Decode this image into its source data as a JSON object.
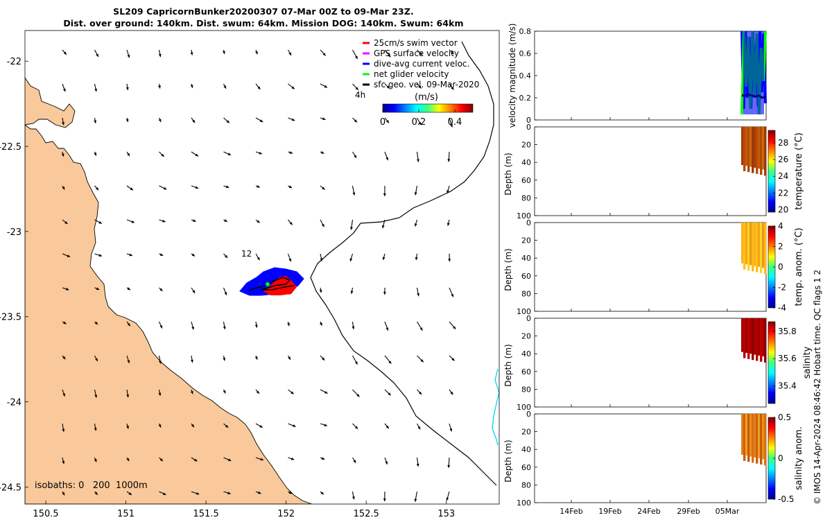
{
  "chart_data": [
    {
      "type": "map",
      "title_line1": "SL209 CapricornBunker20200307 07-Mar 00Z to 09-Mar 23Z.",
      "title_line2": "Dist. over ground: 140km. Dist. swum: 64km. Mission DOG: 140km. Swum: 64km",
      "xlim": [
        150.37,
        153.33
      ],
      "ylim": [
        -24.6,
        -21.82
      ],
      "x_ticks": [
        150.5,
        151,
        151.5,
        152,
        152.5,
        153
      ],
      "x_tick_labels": [
        "150.5",
        "151",
        "151.5",
        "152",
        "152.5",
        "153"
      ],
      "y_ticks": [
        -22,
        -22.5,
        -23,
        -23.5,
        -24,
        -24.5
      ],
      "y_tick_labels": [
        "-22",
        "-22.5",
        "-23",
        "-23.5",
        "-24",
        "-24.5"
      ],
      "legend": [
        {
          "label": "25cm/s swim vector",
          "color": "#ff0000"
        },
        {
          "label": "GPS surface velocity",
          "color": "#ff00ff"
        },
        {
          "label": "dive-avg current veloc.",
          "color": "#0000ff"
        },
        {
          "label": "net glider velocity",
          "color": "#00ff00"
        },
        {
          "label": "sfc geo. vel. 09-Mar-2020",
          "color": "#000000"
        }
      ],
      "colorbar": {
        "label": "(m/s)",
        "ticks": [
          0,
          0.2,
          0.4
        ],
        "tick_labels": [
          "0",
          "0.2",
          "0.4"
        ],
        "range": [
          0,
          0.5
        ]
      },
      "annotations": {
        "time_step": "4h",
        "marker_12": "12",
        "isobaths": "isobaths: 0   200  1000m"
      },
      "colors": {
        "land": "#f9c99b",
        "track": "#0000ff",
        "swim": "#ff0000",
        "net": "#00ff00",
        "isobath_far": "#00e5e5"
      }
    },
    {
      "type": "line",
      "ylabel": "velocity magnitude (m/s)",
      "ylim": [
        0,
        0.8
      ],
      "y_ticks": [
        0,
        0.2,
        0.4,
        0.6,
        0.8
      ],
      "y_tick_labels": [
        "0",
        "0.2",
        "0.4",
        "0.6",
        "0.8"
      ],
      "x_tick_labels": [
        "14Feb",
        "19Feb",
        "24Feb",
        "29Feb",
        "05Mar"
      ],
      "series": [
        {
          "color": "#0000ff",
          "values": [
            0.8,
            0.1,
            0.8,
            0.2,
            0.75,
            0.1,
            0.8,
            0.3,
            0.7,
            0.12,
            0.8,
            0.25,
            0.78,
            0.15
          ]
        },
        {
          "color": "#00ff00",
          "values": [
            0.05,
            0.8,
            0.3,
            0.75,
            0.1,
            0.8,
            0.2,
            0.78,
            0.05,
            0.65,
            0.35,
            0.8
          ]
        },
        {
          "color": "#000000",
          "values": [
            0.22,
            0.22,
            0.23,
            0.22,
            0.21,
            0.22,
            0.2,
            0.21
          ]
        }
      ]
    },
    {
      "type": "heatmap",
      "ylabel": "Depth (m)",
      "colorbar_label": "temperature (°C)",
      "depth_range": [
        0,
        100
      ],
      "colorbar_ticks": [
        20,
        22,
        24,
        26,
        28
      ],
      "colorbar_tick_labels": [
        "20",
        "22",
        "24",
        "26",
        "28"
      ],
      "value_range": [
        19.7,
        29.5
      ]
    },
    {
      "type": "heatmap",
      "ylabel": "Depth (m)",
      "colorbar_label": "temp. anom. (°C)",
      "depth_range": [
        0,
        100
      ],
      "colorbar_ticks": [
        -4,
        -2,
        0,
        2,
        4
      ],
      "colorbar_tick_labels": [
        "-4",
        "-2",
        "0",
        "2",
        "4"
      ],
      "value_range": [
        -4,
        4
      ]
    },
    {
      "type": "heatmap",
      "ylabel": "Depth (m)",
      "colorbar_label": "salinity",
      "depth_range": [
        0,
        100
      ],
      "colorbar_ticks": [
        35.4,
        35.6,
        35.8
      ],
      "colorbar_tick_labels": [
        "35.4",
        "35.6",
        "35.8"
      ],
      "value_range": [
        35.27,
        35.87
      ]
    },
    {
      "type": "heatmap",
      "ylabel": "Depth (m)",
      "colorbar_label": "salinity anom.",
      "depth_range": [
        0,
        100
      ],
      "colorbar_ticks": [
        -0.5,
        0,
        0.5
      ],
      "colorbar_tick_labels": [
        "-0.5",
        "0",
        "0.5"
      ],
      "value_range": [
        -0.5,
        0.5
      ]
    }
  ],
  "depth_tick_labels": [
    "0",
    "20",
    "40",
    "60",
    "80",
    "100"
  ],
  "credit": "© IMOS 14-Apr-2024 08:46:42 Hobart time. QC flags 1  2"
}
